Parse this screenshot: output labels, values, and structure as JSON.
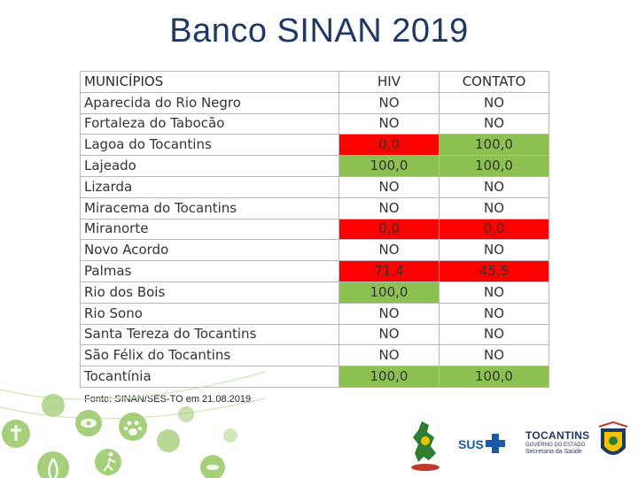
{
  "slide": {
    "title": "Banco SINAN 2019"
  },
  "table": {
    "headers": [
      "MUNICÍPIOS",
      "HIV",
      "CONTATO"
    ],
    "rows": [
      {
        "municipio": "Aparecida do Rio Negro",
        "hiv": "NO",
        "contato": "NO",
        "hiv_status": "none",
        "contato_status": "none"
      },
      {
        "municipio": "Fortaleza do Tabocão",
        "hiv": "NO",
        "contato": "NO",
        "hiv_status": "none",
        "contato_status": "none"
      },
      {
        "municipio": "Lagoa do Tocantins",
        "hiv": "0,0",
        "contato": "100,0",
        "hiv_status": "red",
        "contato_status": "green"
      },
      {
        "municipio": "Lajeado",
        "hiv": "100,0",
        "contato": "100,0",
        "hiv_status": "green",
        "contato_status": "green"
      },
      {
        "municipio": "Lizarda",
        "hiv": "NO",
        "contato": "NO",
        "hiv_status": "none",
        "contato_status": "none"
      },
      {
        "municipio": "Miracema do Tocantins",
        "hiv": "NO",
        "contato": "NO",
        "hiv_status": "none",
        "contato_status": "none"
      },
      {
        "municipio": "Miranorte",
        "hiv": "0,0",
        "contato": "0,0",
        "hiv_status": "red",
        "contato_status": "red"
      },
      {
        "municipio": "Novo Acordo",
        "hiv": "NO",
        "contato": "NO",
        "hiv_status": "none",
        "contato_status": "none"
      },
      {
        "municipio": "Palmas",
        "hiv": "71,4",
        "contato": "45,5",
        "hiv_status": "red",
        "contato_status": "red"
      },
      {
        "municipio": "Rio dos Bois",
        "hiv": "100,0",
        "contato": "NO",
        "hiv_status": "green",
        "contato_status": "none"
      },
      {
        "municipio": "Rio Sono",
        "hiv": "NO",
        "contato": "NO",
        "hiv_status": "none",
        "contato_status": "none"
      },
      {
        "municipio": "Santa Tereza do Tocantins",
        "hiv": "NO",
        "contato": "NO",
        "hiv_status": "none",
        "contato_status": "none"
      },
      {
        "municipio": "São Félix do Tocantins",
        "hiv": "NO",
        "contato": "NO",
        "hiv_status": "none",
        "contato_status": "none"
      },
      {
        "municipio": "Tocantínia",
        "hiv": "100,0",
        "contato": "100,0",
        "hiv_status": "green",
        "contato_status": "green"
      }
    ]
  },
  "source": "Fonte: SINAN/SES-TO em 21.08.2019",
  "logos": {
    "sus": "SUS",
    "state": "TOCANTINS",
    "state_sub": "GOVERNO DO ESTADO",
    "secretaria": "Secretaria da Saúde"
  },
  "colors": {
    "title": "#1f3864",
    "red": "#ff0000",
    "green": "#8cc152",
    "decor_green": "#a5cf7a"
  },
  "icons": [
    "health-icon-circle",
    "awareness-ribbon-icon",
    "runner-icon",
    "paw-icon",
    "mosquito-icon",
    "eye-icon"
  ]
}
